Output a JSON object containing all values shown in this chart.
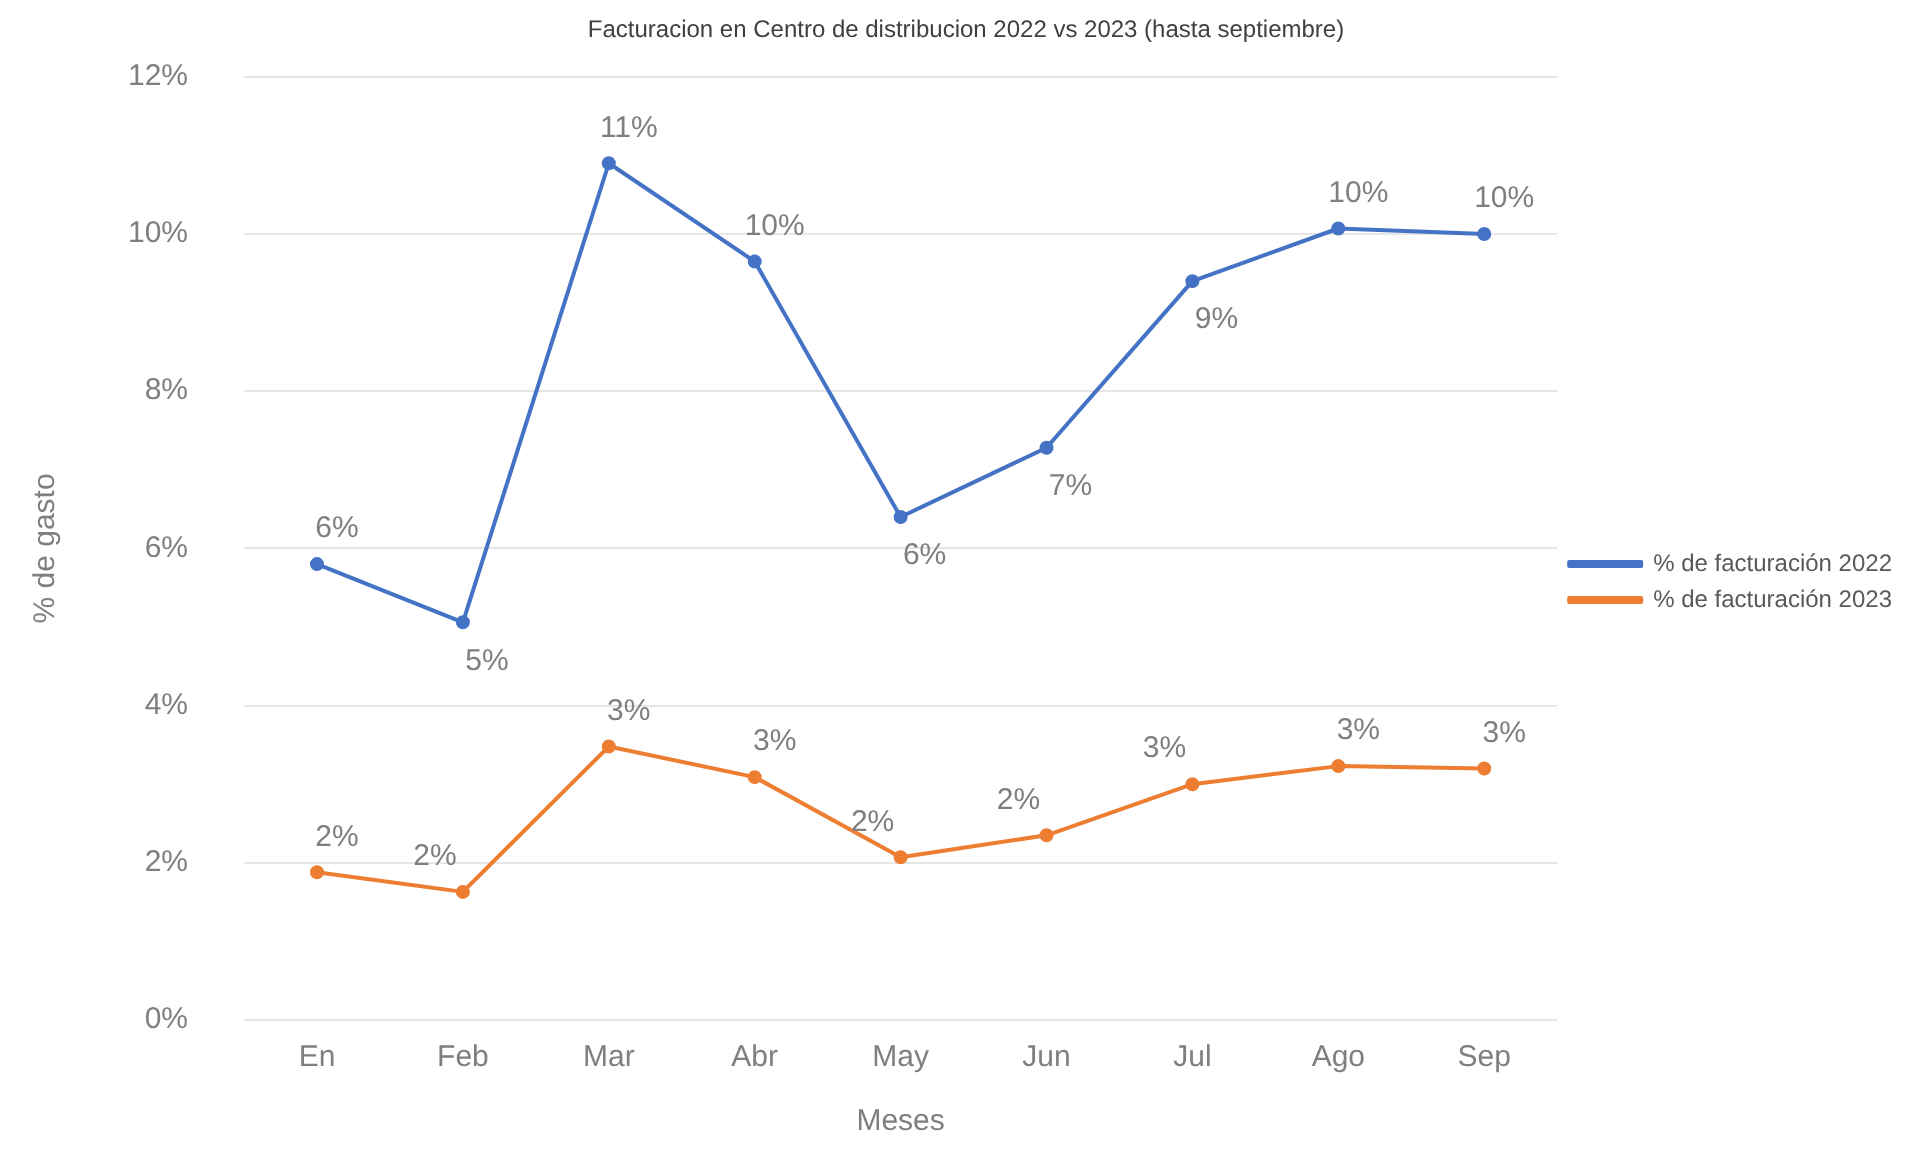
{
  "chart_data": {
    "type": "line",
    "title": "Facturacion en Centro de distribucion 2022 vs 2023 (hasta septiembre)",
    "xlabel": "Meses",
    "ylabel": "% de gasto",
    "categories": [
      "En",
      "Feb",
      "Mar",
      "Abr",
      "May",
      "Jun",
      "Jul",
      "Ago",
      "Sep"
    ],
    "series": [
      {
        "name": "% de facturación 2022",
        "color": "#4472c4",
        "values": [
          5.8,
          5.06,
          10.9,
          9.65,
          6.4,
          7.28,
          9.4,
          10.07,
          10.0
        ],
        "value_labels": [
          "6%",
          "5%",
          "11%",
          "10%",
          "6%",
          "7%",
          "9%",
          "10%",
          "10%"
        ]
      },
      {
        "name": "% de facturación 2023",
        "color": "#ed7d31",
        "values": [
          1.88,
          1.63,
          3.48,
          3.09,
          2.07,
          2.35,
          3.0,
          3.23,
          3.2
        ],
        "value_labels": [
          "2%",
          "2%",
          "3%",
          "3%",
          "2%",
          "2%",
          "3%",
          "3%",
          "3%"
        ]
      }
    ],
    "ylim": [
      0,
      12
    ],
    "yticks": [
      {
        "value": 0,
        "label": "0%"
      },
      {
        "value": 2,
        "label": "2%"
      },
      {
        "value": 4,
        "label": "4%"
      },
      {
        "value": 6,
        "label": "6%"
      },
      {
        "value": 8,
        "label": "8%"
      },
      {
        "value": 10,
        "label": "10%"
      },
      {
        "value": 12,
        "label": "12%"
      }
    ],
    "grid": "y",
    "legend": "right",
    "marker": "circle",
    "line_style": "solid"
  }
}
